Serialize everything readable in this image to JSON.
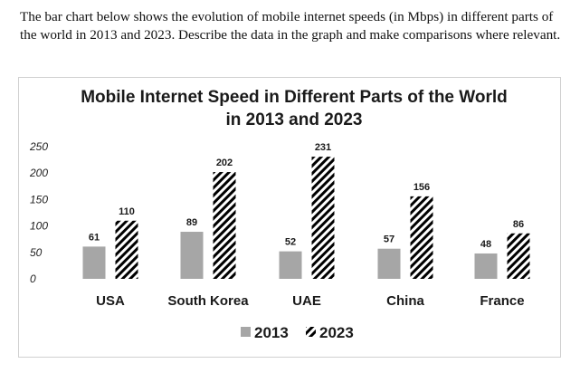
{
  "prompt": {
    "text": "The bar chart below shows the evolution of mobile internet speeds (in Mbps) in different parts of the world in 2013 and 2023. Describe the data in the graph and make comparisons where relevant."
  },
  "colors": {
    "bar_2013": "#a6a6a6",
    "bar_2023_pattern": "#000000"
  },
  "chart_data": {
    "type": "bar",
    "title_line1": "Mobile Internet Speed in Different Parts of the World",
    "title_line2": "in 2013 and 2023",
    "xlabel": "",
    "ylabel": "",
    "ylim": [
      0,
      250
    ],
    "yticks": [
      0,
      50,
      100,
      150,
      200,
      250
    ],
    "grid": false,
    "legend_position": "bottom",
    "categories": [
      "USA",
      "South Korea",
      "UAE",
      "China",
      "France"
    ],
    "series": [
      {
        "name": "2013",
        "values": [
          61,
          89,
          52,
          57,
          48
        ]
      },
      {
        "name": "2023",
        "values": [
          110,
          202,
          231,
          156,
          86
        ]
      }
    ]
  }
}
